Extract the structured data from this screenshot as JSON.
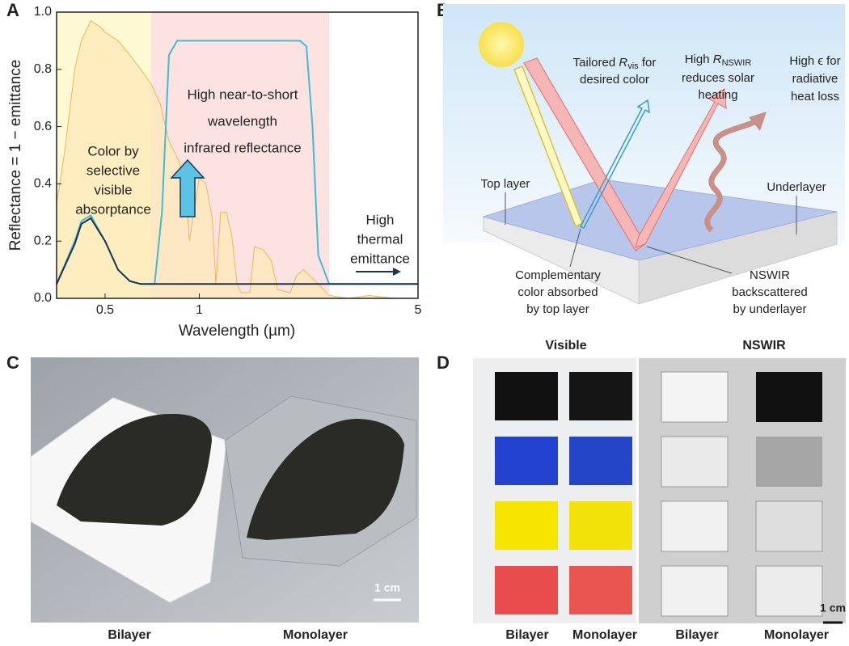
{
  "panels": {
    "a": "A",
    "b": "B",
    "c": "C",
    "d": "D"
  },
  "chart_data": {
    "type": "line",
    "xlabel": "Wavelength (µm)",
    "ylabel": "Reflectance = 1 − emittance",
    "xscale": "log",
    "xlim": [
      0.35,
      5
    ],
    "xticks": [
      0.5,
      1,
      5
    ],
    "ylim": [
      0,
      1
    ],
    "yticks": [
      {
        "value": 0,
        "label": "0.0"
      },
      0.2,
      0.4,
      0.6,
      0.8,
      {
        "value": 1,
        "label": "1.0"
      }
    ],
    "bands": [
      {
        "x": [
          0.35,
          0.7
        ],
        "color": "#fdf9d2"
      },
      {
        "x": [
          0.7,
          2.6
        ],
        "color": "#fde2e2"
      }
    ],
    "series": [
      {
        "color": "#f5b553",
        "fill": "#fde9b8",
        "x": [
          0.35,
          0.37,
          0.4,
          0.42,
          0.45,
          0.48,
          0.5,
          0.55,
          0.6,
          0.65,
          0.7,
          0.75,
          0.8,
          0.86,
          0.9,
          0.93,
          0.96,
          1.0,
          1.05,
          1.1,
          1.13,
          1.17,
          1.22,
          1.27,
          1.32,
          1.36,
          1.45,
          1.5,
          1.6,
          1.7,
          1.78,
          1.95,
          2.05,
          2.15,
          2.3,
          2.45,
          2.6,
          3.0,
          3.5,
          4.2,
          5
        ],
        "values": [
          0.33,
          0.5,
          0.8,
          0.9,
          0.97,
          0.95,
          0.93,
          0.9,
          0.85,
          0.8,
          0.75,
          0.68,
          0.55,
          0.48,
          0.42,
          0.2,
          0.3,
          0.42,
          0.4,
          0.28,
          0.05,
          0.3,
          0.3,
          0.22,
          0.05,
          0.02,
          0.02,
          0.18,
          0.17,
          0.13,
          0.03,
          0.02,
          0.08,
          0.1,
          0.07,
          0.04,
          0.01,
          0.0,
          0.01,
          0.0,
          0.0
        ]
      },
      {
        "color": "#45b8d8",
        "x": [
          0.35,
          0.4,
          0.42,
          0.45,
          0.5,
          0.55,
          0.6,
          0.65,
          0.72,
          0.76,
          0.8,
          0.85,
          2.1,
          2.2,
          2.3,
          2.4,
          2.6,
          5
        ],
        "values": [
          0.05,
          0.2,
          0.27,
          0.29,
          0.2,
          0.1,
          0.06,
          0.05,
          0.05,
          0.3,
          0.85,
          0.9,
          0.9,
          0.88,
          0.6,
          0.15,
          0.05,
          0.05
        ]
      },
      {
        "color": "#1c3552",
        "x": [
          0.35,
          0.4,
          0.42,
          0.45,
          0.5,
          0.55,
          0.6,
          0.65,
          0.72,
          5
        ],
        "values": [
          0.05,
          0.19,
          0.26,
          0.28,
          0.2,
          0.1,
          0.06,
          0.05,
          0.05,
          0.05
        ]
      }
    ],
    "annotations": [
      {
        "lines": [
          "Color by",
          "selective",
          "visible",
          "absorptance"
        ]
      },
      {
        "lines": [
          "High near-to-short",
          "wavelength",
          "infrared reflectance"
        ]
      },
      {
        "lines": [
          "High",
          "thermal",
          "emittance"
        ]
      }
    ]
  },
  "diagram": {
    "tailored": {
      "pre": "Tailored ",
      "var": "R",
      "sub": "vis",
      "post": " for",
      "line2": "desired color"
    },
    "nswir": {
      "pre": "High ",
      "var": "R",
      "sub": "NSWIR",
      "line2": "reduces solar",
      "line3": "heating"
    },
    "emit": {
      "lines": [
        "High ϵ for",
        "radiative",
        "heat loss"
      ]
    },
    "top_layer": "Top layer",
    "underlayer": "Underlayer",
    "complementary": [
      "Complementary",
      "color absorbed",
      "by top layer"
    ],
    "backscatter": [
      "NSWIR",
      "backscattered",
      "by underlayer"
    ]
  },
  "photo_c": {
    "labels": [
      "Bilayer",
      "Monolayer"
    ],
    "scale": "1 cm"
  },
  "photo_d": {
    "headers": [
      "Visible",
      "NSWIR"
    ],
    "labels": [
      "Bilayer",
      "Monolayer",
      "Bilayer",
      "Monolayer"
    ],
    "scale": "1 cm"
  }
}
